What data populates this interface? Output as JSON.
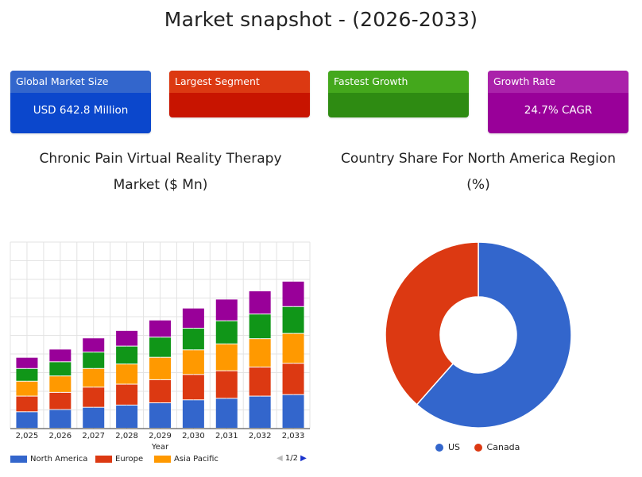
{
  "page": {
    "title": "Market snapshot - (2026-2033)"
  },
  "cards": [
    {
      "label": "Global Market Size",
      "value": "USD 642.8 Million",
      "head_color": "#3366cc",
      "body_color": "#0b47cc"
    },
    {
      "label": "Largest Segment",
      "value": "",
      "head_color": "#dc3912",
      "body_color": "#c81400"
    },
    {
      "label": "Fastest Growth",
      "value": "",
      "head_color": "#44a81c",
      "body_color": "#2e8b12"
    },
    {
      "label": "Growth Rate",
      "value": "24.7% CAGR",
      "head_color": "#aa22aa",
      "body_color": "#990099"
    }
  ],
  "bar_section": {
    "title_line1": "Chronic Pain Virtual Reality Therapy",
    "title_line2": "Market ($ Mn)"
  },
  "pie_section": {
    "title_line1": "Country Share For North America Region",
    "title_line2": "(%)"
  },
  "chart_data": [
    {
      "type": "bar",
      "stacked": true,
      "title": "Chronic Pain Virtual Reality Therapy Market ($ Mn)",
      "xlabel": "Year",
      "categories": [
        "2,025",
        "2,026",
        "2,027",
        "2,028",
        "2,029",
        "2,030",
        "2,031",
        "2,032",
        "2,033"
      ],
      "series": [
        {
          "name": "North America",
          "color": "#3366cc",
          "values": [
            22,
            25,
            28,
            31,
            34,
            38,
            40,
            43,
            45
          ]
        },
        {
          "name": "Europe",
          "color": "#dc3912",
          "values": [
            21,
            23,
            27,
            28,
            31,
            34,
            37,
            39,
            42
          ]
        },
        {
          "name": "Asia Pacific",
          "color": "#ff9900",
          "values": [
            20,
            22,
            25,
            27,
            30,
            33,
            36,
            38,
            40
          ]
        },
        {
          "name": "",
          "color": "#109618",
          "values": [
            17,
            19,
            22,
            24,
            27,
            29,
            31,
            33,
            36
          ]
        },
        {
          "name": "",
          "color": "#990099",
          "values": [
            15,
            17,
            19,
            21,
            23,
            27,
            29,
            31,
            34
          ]
        }
      ],
      "ylim": [
        0,
        250
      ],
      "grid": true,
      "legend_position": "bottom",
      "legend_page": "1/2"
    },
    {
      "type": "pie",
      "donut": true,
      "title": "Country Share For North America Region (%)",
      "labels": [
        "US",
        "Canada"
      ],
      "values": [
        61.5,
        38.5
      ],
      "colors": [
        "#3366cc",
        "#dc3912"
      ],
      "legend_position": "bottom"
    }
  ]
}
